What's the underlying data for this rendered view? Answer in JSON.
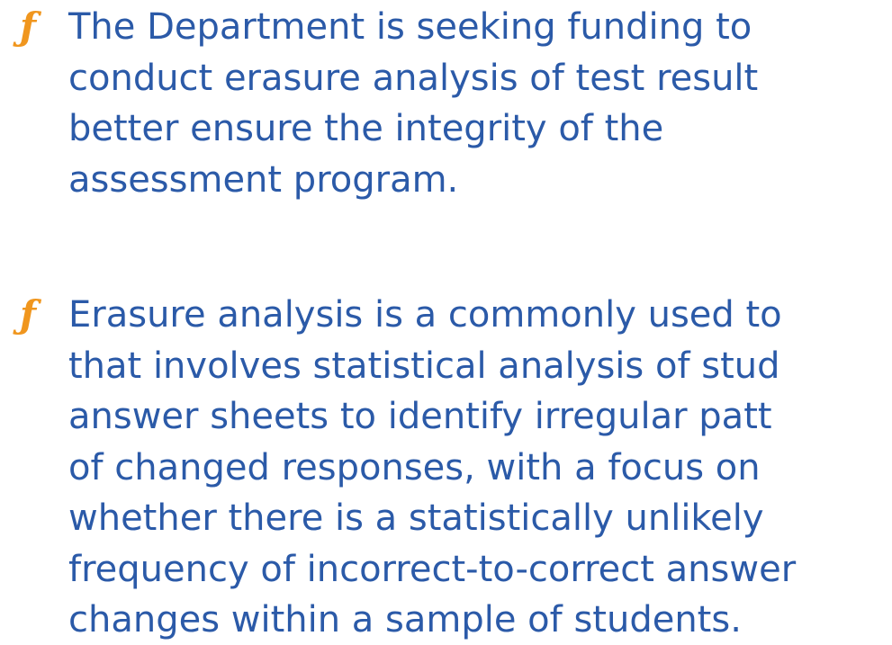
{
  "bullets": [
    {
      "marker": "ƒ",
      "lines": [
        "The Department is seeking funding to",
        "conduct erasure analysis of test result",
        "better ensure the integrity of the",
        "assessment program."
      ]
    },
    {
      "marker": "ƒ",
      "lines": [
        "Erasure analysis is a commonly used to",
        "that involves statistical analysis of stud",
        "answer sheets to identify irregular patt",
        "of changed responses, with a focus on",
        "whether there is a statistically unlikely",
        "frequency of incorrect-to-correct answer",
        "changes within a sample of students."
      ]
    }
  ]
}
